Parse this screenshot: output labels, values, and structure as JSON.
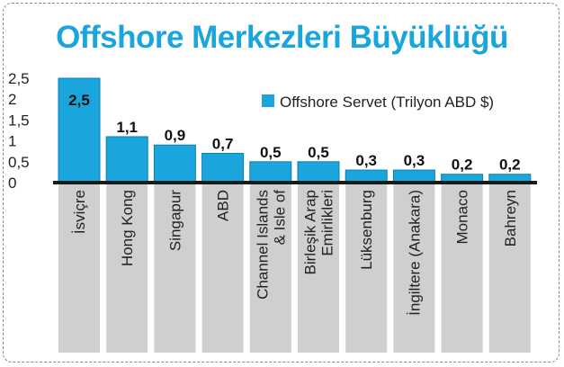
{
  "chart_data": {
    "type": "bar",
    "title": "Offshore Merkezleri Büyüklüğü",
    "categories": [
      "İsviçre",
      "Hong Kong",
      "Singapur",
      "ABD",
      "Channel Islands & Isle of",
      "Birleşik Arap Emirlikleri",
      "Lüksenburg",
      "İngiltere (Anakara)",
      "Monaco",
      "Bahreyn"
    ],
    "category_lines": [
      [
        "İsviçre"
      ],
      [
        "Hong Kong"
      ],
      [
        "Singapur"
      ],
      [
        "ABD"
      ],
      [
        "Channel Islands",
        "& Isle of"
      ],
      [
        "Birleşik Arap",
        "Emirlikleri"
      ],
      [
        "Lüksenburg"
      ],
      [
        "İngiltere (Anakara)"
      ],
      [
        "Monaco"
      ],
      [
        "Bahreyn"
      ]
    ],
    "series": [
      {
        "name": "Offshore Servet (Trilyon ABD $)",
        "values": [
          2.5,
          1.1,
          0.9,
          0.7,
          0.5,
          0.5,
          0.3,
          0.3,
          0.2,
          0.2
        ]
      }
    ],
    "value_labels": [
      "2,5",
      "1,1",
      "0,9",
      "0,7",
      "0,5",
      "0,5",
      "0,3",
      "0,3",
      "0,2",
      "0,2"
    ],
    "y_ticks": [
      0,
      0.5,
      1,
      1.5,
      2,
      2.5
    ],
    "y_tick_labels": [
      "0",
      "0,5",
      "1",
      "1,5",
      "2",
      "2,5"
    ],
    "ylim": [
      0,
      2.5
    ],
    "grid": false,
    "legend_position": "top-right",
    "colors": {
      "bar": "#1aa6dc",
      "bar_stroke": "#0b7fb0",
      "label_panel": "#cfcfcf",
      "title": "#1aa6dc",
      "axis": "#1a1a1a"
    }
  }
}
